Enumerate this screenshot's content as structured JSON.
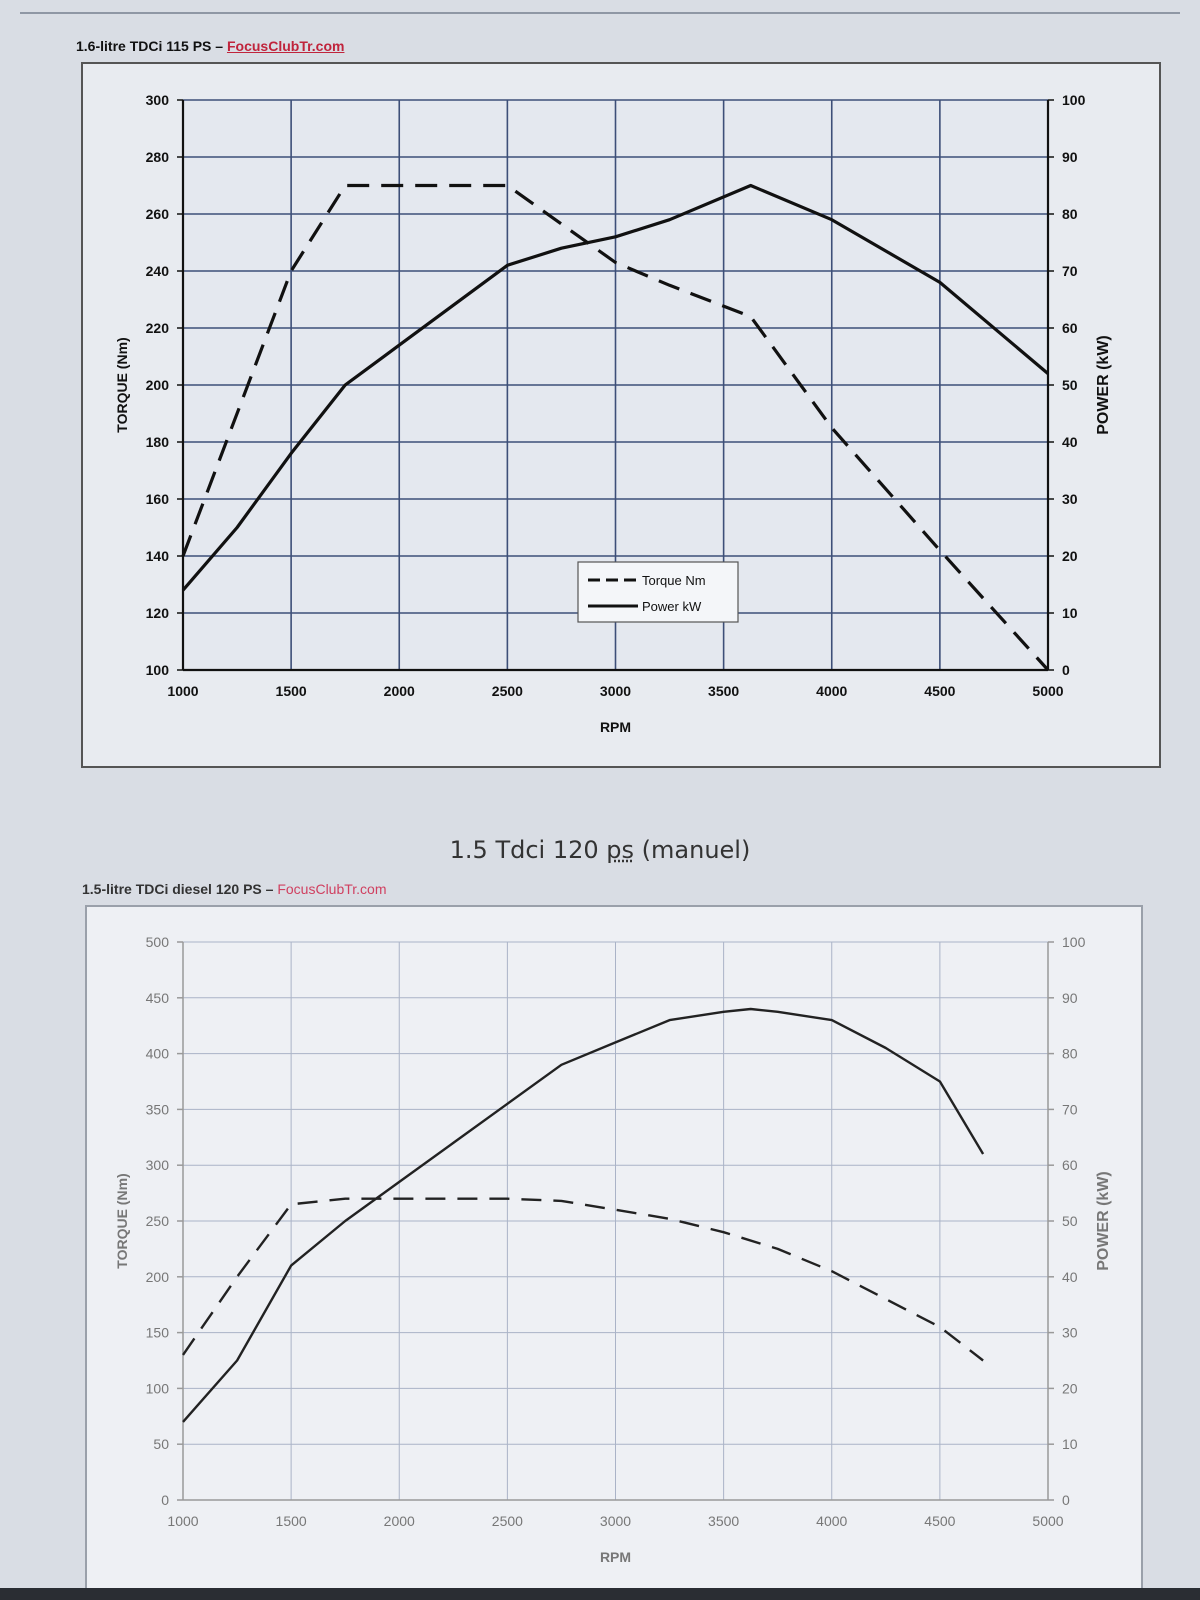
{
  "caption": {
    "text": "1.5 Tdci 120 ",
    "ps": "ps",
    "rest": " (manuel)"
  },
  "charts": [
    {
      "heading": "1.6-litre TDCi 115 PS",
      "dash": " – ",
      "source": "FocusClubTr.com",
      "ylabel_left": "TORQUE (Nm)",
      "ylabel_right": "POWER (kW)",
      "xlabel": "RPM",
      "legend": [
        "Torque Nm",
        "Power kW"
      ]
    },
    {
      "heading": "1.5-litre TDCi diesel 120 PS",
      "dash": " – ",
      "source": "FocusClubTr.com",
      "ylabel_left": "TORQUE (Nm)",
      "ylabel_right": "POWER (kW)",
      "xlabel": "RPM",
      "legend": []
    }
  ],
  "chart_data": [
    {
      "type": "line",
      "title": "1.6-litre TDCi 115 PS",
      "xlabel": "RPM",
      "ylabel": "TORQUE (Nm)",
      "y2label": "POWER (kW)",
      "xlim": [
        1000,
        5000
      ],
      "ylim": [
        100,
        300
      ],
      "y2lim": [
        0,
        100
      ],
      "xticks": [
        1000,
        1500,
        2000,
        2500,
        3000,
        3500,
        4000,
        4500,
        5000
      ],
      "yticks": [
        100,
        120,
        140,
        160,
        180,
        200,
        220,
        240,
        260,
        280,
        300
      ],
      "y2ticks": [
        0,
        10,
        20,
        30,
        40,
        50,
        60,
        70,
        80,
        90,
        100
      ],
      "grid": true,
      "legend_position": "bottom-center",
      "series": [
        {
          "name": "Torque Nm",
          "axis": "left",
          "style": "dashed",
          "x": [
            1000,
            1500,
            1750,
            2500,
            3000,
            3250,
            3625,
            4000,
            4500,
            5000
          ],
          "y": [
            140,
            240,
            270,
            270,
            243,
            235,
            224,
            185,
            142,
            100
          ]
        },
        {
          "name": "Power kW",
          "axis": "right",
          "style": "solid",
          "x": [
            1000,
            1250,
            1500,
            1750,
            2000,
            2500,
            2750,
            3000,
            3250,
            3625,
            4000,
            4500,
            5000
          ],
          "y": [
            14,
            25,
            38,
            50,
            57,
            71,
            74,
            76,
            79,
            85,
            79,
            68,
            52
          ]
        }
      ]
    },
    {
      "type": "line",
      "title": "1.5-litre TDCi diesel 120 PS",
      "xlabel": "RPM",
      "ylabel": "TORQUE (Nm)",
      "y2label": "POWER (kW)",
      "xlim": [
        1000,
        5000
      ],
      "ylim": [
        0,
        500
      ],
      "y2lim": [
        0,
        100
      ],
      "xticks": [
        1000,
        1500,
        2000,
        2500,
        3000,
        3500,
        4000,
        4500,
        5000
      ],
      "yticks": [
        0,
        50,
        100,
        150,
        200,
        250,
        300,
        350,
        400,
        450,
        500
      ],
      "y2ticks": [
        0,
        10,
        20,
        30,
        40,
        50,
        60,
        70,
        80,
        90,
        100
      ],
      "grid": true,
      "series": [
        {
          "axis": "left",
          "style": "dashed",
          "x": [
            1000,
            1250,
            1500,
            1750,
            2000,
            2500,
            2750,
            3000,
            3250,
            3500,
            3750,
            4000,
            4250,
            4500,
            4700
          ],
          "y": [
            130,
            200,
            265,
            270,
            270,
            270,
            268,
            260,
            252,
            240,
            225,
            205,
            180,
            155,
            125
          ]
        },
        {
          "axis": "right",
          "style": "solid",
          "x": [
            1000,
            1250,
            1500,
            1750,
            2000,
            2250,
            2500,
            2750,
            3000,
            3250,
            3500,
            3625,
            3750,
            4000,
            4250,
            4500,
            4700
          ],
          "y": [
            14,
            25,
            42,
            50,
            57,
            64,
            71,
            78,
            82,
            86,
            87.5,
            88,
            87.5,
            86,
            81,
            75,
            62
          ]
        }
      ]
    }
  ]
}
